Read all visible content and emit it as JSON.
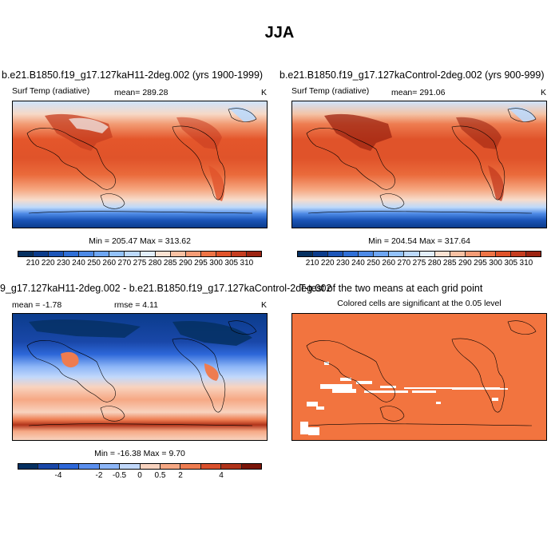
{
  "title": "JJA",
  "panels": [
    {
      "title": "b.e21.B1850.f19_g17.127kaH11-2deg.002 (yrs 1900-1999)",
      "var_label": "Surf Temp (radiative)",
      "stat_label": "mean= 289.28",
      "units": "K",
      "minmax": "Min = 205.47 Max = 313.62",
      "colorbar_labels": [
        "210",
        "220",
        "230",
        "240",
        "250",
        "260",
        "270",
        "275",
        "280",
        "285",
        "290",
        "295",
        "300",
        "305",
        "310"
      ]
    },
    {
      "title": "b.e21.B1850.f19_g17.127kaControl-2deg.002 (yrs 900-999)",
      "var_label": "Surf Temp (radiative)",
      "stat_label": "mean= 291.06",
      "units": "K",
      "minmax": "Min = 204.54 Max = 317.64",
      "colorbar_labels": [
        "210",
        "220",
        "230",
        "240",
        "250",
        "260",
        "270",
        "275",
        "280",
        "285",
        "290",
        "295",
        "300",
        "305",
        "310"
      ]
    },
    {
      "title": "9_g17.127kaH11-2deg.002 - b.e21.B1850.f19_g17.127kaControl-2deg.002",
      "mean_label": "mean =  -1.78",
      "rmse_label": "rmse =   4.11",
      "units": "K",
      "minmax": "Min = -16.38 Max =  9.70",
      "colorbar_labels": [
        "-4",
        "-2",
        "-0.5",
        "0",
        "0.5",
        "2",
        "4"
      ]
    },
    {
      "title": "T-test of the two means at each grid point",
      "subtitle": "Colored cells are significant at the 0.05 level"
    }
  ],
  "colors": {
    "abs_scale": [
      "#053061",
      "#0b3c8c",
      "#1c55b8",
      "#2f6fd6",
      "#4d8ae6",
      "#6ea6f2",
      "#93c2fa",
      "#bcd9fb",
      "#e2eefb",
      "#fbe2d2",
      "#f9c1a3",
      "#f59c76",
      "#ee7446",
      "#e0532a",
      "#c63d20",
      "#9d2412",
      "#6e0f07"
    ],
    "diff_scale": [
      "#053061",
      "#1947a8",
      "#2d67d8",
      "#5a8fee",
      "#8db6f7",
      "#c1d8fb",
      "#f8d3bf",
      "#f6a884",
      "#ee7c50",
      "#d9502c",
      "#b0331a",
      "#7a1509"
    ],
    "significant": "#f2743f"
  }
}
